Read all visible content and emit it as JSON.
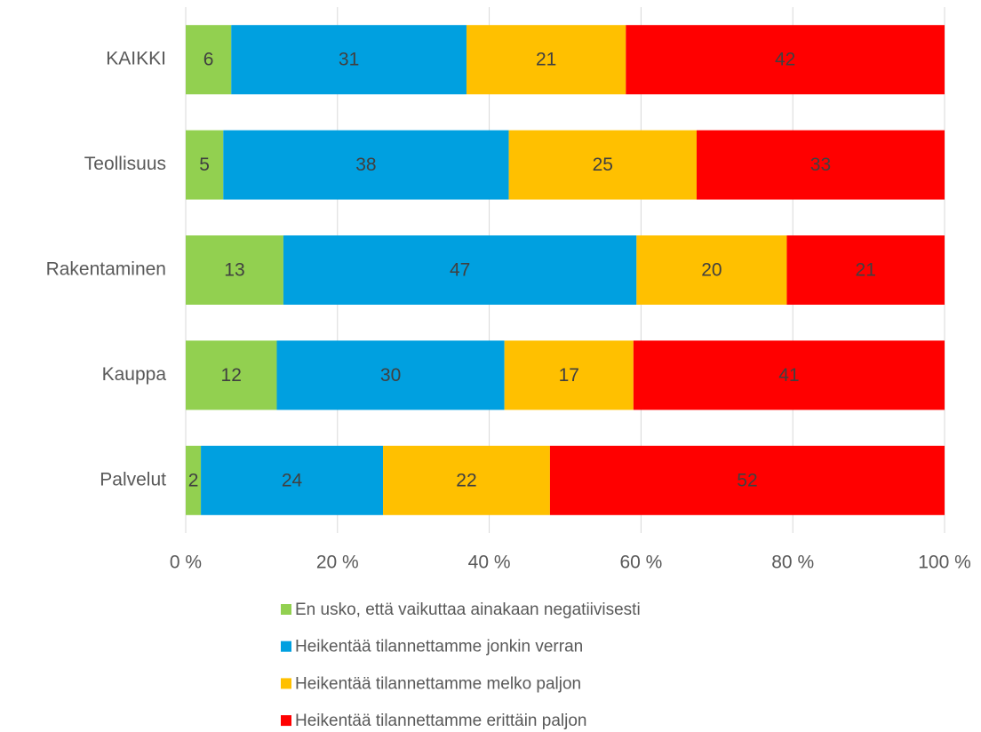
{
  "chart_data": {
    "type": "bar",
    "orientation": "horizontal",
    "stacked": "percent",
    "categories": [
      "KAIKKI",
      "Teollisuus",
      "Rakentaminen",
      "Kauppa",
      "Palvelut"
    ],
    "series": [
      {
        "name": "En usko, että vaikuttaa ainakaan negatiivisesti",
        "color": "#92d050",
        "values": [
          6,
          5,
          13,
          12,
          2
        ]
      },
      {
        "name": "Heikentää tilannettamme jonkin verran",
        "color": "#00a0e0",
        "values": [
          31,
          38,
          47,
          30,
          24
        ]
      },
      {
        "name": "Heikentää tilannettamme melko paljon",
        "color": "#ffc000",
        "values": [
          21,
          25,
          20,
          17,
          22
        ]
      },
      {
        "name": "Heikentää tilannettamme erittäin paljon",
        "color": "#ff0000",
        "values": [
          42,
          33,
          21,
          41,
          52
        ]
      }
    ],
    "xlim": [
      0,
      100
    ],
    "xticks": [
      {
        "value": 0,
        "label": "0 %"
      },
      {
        "value": 20,
        "label": "20 %"
      },
      {
        "value": 40,
        "label": "40 %"
      },
      {
        "value": 60,
        "label": "60 %"
      },
      {
        "value": 80,
        "label": "80 %"
      },
      {
        "value": 100,
        "label": "100 %"
      }
    ],
    "grid": true,
    "legend": "bottom"
  }
}
